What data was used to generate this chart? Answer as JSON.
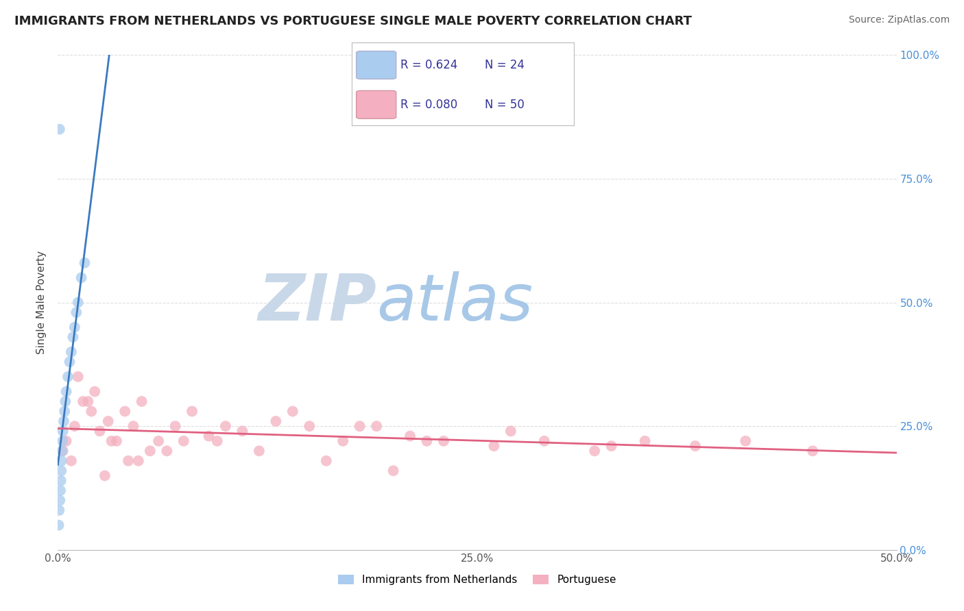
{
  "title": "IMMIGRANTS FROM NETHERLANDS VS PORTUGUESE SINGLE MALE POVERTY CORRELATION CHART",
  "source": "Source: ZipAtlas.com",
  "ylabel": "Single Male Poverty",
  "legend_label1": "Immigrants from Netherlands",
  "legend_label2": "Portuguese",
  "R1": 0.624,
  "N1": 24,
  "R2": 0.08,
  "N2": 50,
  "color1": "#aaccee",
  "color2": "#f4b0c0",
  "line_color1": "#3a7abf",
  "line_color2": "#e06080",
  "netherlands_x": [
    0.05,
    0.08,
    0.12,
    0.15,
    0.18,
    0.2,
    0.22,
    0.25,
    0.28,
    0.3,
    0.35,
    0.4,
    0.45,
    0.5,
    0.6,
    0.7,
    0.8,
    0.9,
    1.0,
    1.1,
    1.2,
    1.4,
    1.6,
    0.1
  ],
  "netherlands_y": [
    5,
    8,
    10,
    12,
    14,
    16,
    18,
    20,
    22,
    24,
    26,
    28,
    30,
    32,
    35,
    38,
    40,
    43,
    45,
    48,
    50,
    55,
    58,
    85
  ],
  "portuguese_x": [
    0.3,
    0.5,
    0.8,
    1.0,
    1.5,
    2.0,
    2.5,
    3.0,
    3.5,
    4.0,
    4.5,
    5.0,
    6.0,
    7.0,
    8.0,
    9.5,
    11.0,
    13.0,
    15.0,
    17.0,
    19.0,
    21.0,
    23.0,
    26.0,
    29.0,
    32.0,
    35.0,
    38.0,
    41.0,
    45.0,
    1.2,
    1.8,
    2.2,
    3.2,
    4.2,
    5.5,
    7.5,
    10.0,
    14.0,
    18.0,
    22.0,
    27.0,
    33.0,
    2.8,
    4.8,
    6.5,
    9.0,
    12.0,
    16.0,
    20.0
  ],
  "portuguese_y": [
    20,
    22,
    18,
    25,
    30,
    28,
    24,
    26,
    22,
    28,
    25,
    30,
    22,
    25,
    28,
    22,
    24,
    26,
    25,
    22,
    25,
    23,
    22,
    21,
    22,
    20,
    22,
    21,
    22,
    20,
    35,
    30,
    32,
    22,
    18,
    20,
    22,
    25,
    28,
    25,
    22,
    24,
    21,
    15,
    18,
    20,
    23,
    20,
    18,
    16
  ],
  "xlim": [
    0,
    50
  ],
  "ylim": [
    0,
    100
  ],
  "watermark_ZIP": "ZIP",
  "watermark_atlas": "atlas",
  "watermark_color_ZIP": "#c8d8e8",
  "watermark_color_atlas": "#a8c8e8",
  "background_color": "#ffffff",
  "grid_color": "#dddddd",
  "ytick_color": "#4a90d9",
  "title_fontsize": 13,
  "source_fontsize": 10
}
